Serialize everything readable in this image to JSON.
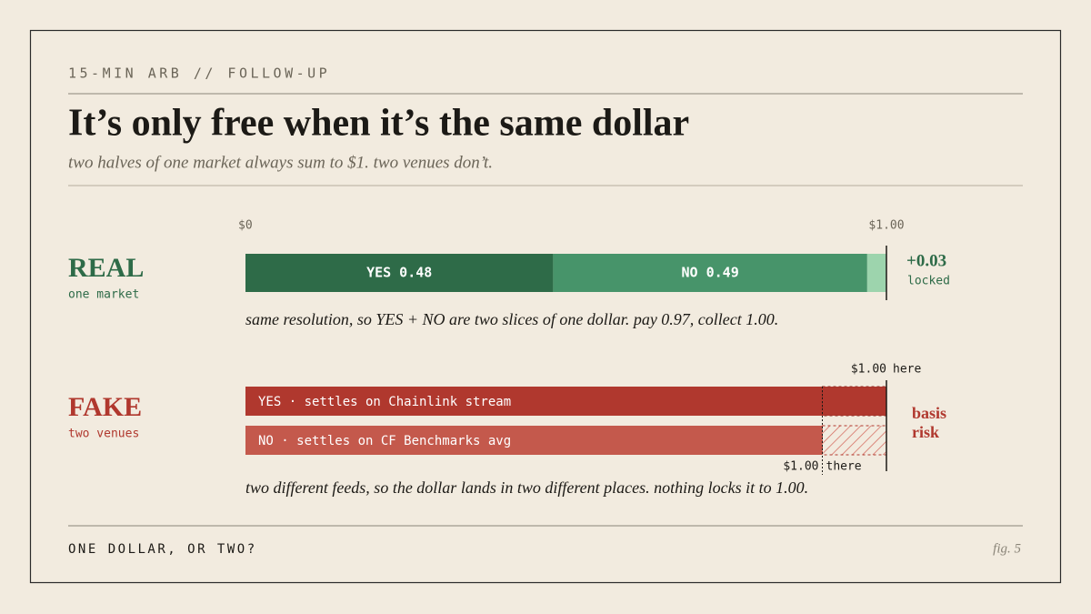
{
  "header": {
    "kicker": "15-MIN ARB // FOLLOW-UP",
    "title": "It’s only free when it’s the same dollar",
    "subtitle": "two halves of one market always sum to $1. two venues don’t."
  },
  "scale": {
    "start": 0,
    "start_label": "$0",
    "end": 1,
    "end_label": "$1.00"
  },
  "real": {
    "label": "REAL",
    "sublabel": "one market",
    "segments": [
      {
        "label": "YES 0.48",
        "value": 0.48,
        "color": "#2e6b48"
      },
      {
        "label": "NO 0.49",
        "value": 0.49,
        "color": "#47946a"
      }
    ],
    "gap": {
      "value": 0.03,
      "label": "+0.03",
      "note": "locked",
      "color": "#9dd4ad"
    },
    "caption": "same resolution, so YES + NO are two slices of one dollar. pay 0.97, collect 1.00."
  },
  "fake": {
    "label": "FAKE",
    "sublabel": "two venues",
    "bars": [
      {
        "label": "YES · settles on Chainlink stream",
        "end": 1,
        "marker": "here",
        "color": "#b0382e"
      },
      {
        "label": "NO · settles on CF Benchmarks avg",
        "end": 0.9,
        "marker": "there",
        "color": "#c4594c"
      }
    ],
    "risk": [
      "basis",
      "risk"
    ],
    "caption": "two different feeds, so the dollar lands in two different places. nothing locks it to 1.00."
  },
  "footer": {
    "left": "ONE DOLLAR, OR TWO?",
    "right": "fig. 5"
  }
}
